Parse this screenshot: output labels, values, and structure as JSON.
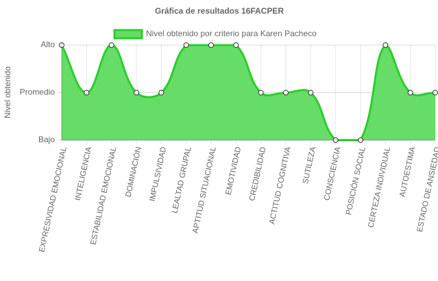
{
  "chart_data": {
    "type": "area",
    "title": "Gráfica de resultados 16FACPER",
    "y_label": "Nivel obtenido",
    "categories": [
      "EXPRESIVIDAD EMOCIONAL",
      "INTELIGENCIA",
      "ESTABILIDAD EMOCIONAL",
      "DOMINACIÓN",
      "IMPULSIVIDAD",
      "LEALTAD GRUPAL",
      "APTITUD SITUACIONAL",
      "EMOTIVIDAD",
      "CREDIBILIDAD",
      "ACTITUD COGNITIVA",
      "SUTILEZA",
      "CONSCIENCIA",
      "POSICIÓN SOCIAL",
      "CERTEZA INDIVIDUAL",
      "AUTOESTIMA",
      "ESTADO DE ANSIEDAD"
    ],
    "series": [
      {
        "name": "Nivel obtenido por criterio para Karen Pacheco",
        "color": "#2ecc2e",
        "fill": "#66dd66",
        "values": [
          3,
          2,
          3,
          2,
          2,
          3,
          3,
          3,
          2,
          2,
          2,
          1,
          1,
          3,
          2,
          2
        ]
      }
    ],
    "ylim": [
      1,
      3
    ],
    "yticks": [
      {
        "value": 1,
        "label": "Bajo"
      },
      {
        "value": 2,
        "label": "Promedio"
      },
      {
        "value": 3,
        "label": "Alto"
      }
    ],
    "grid": true,
    "legend": "top"
  }
}
